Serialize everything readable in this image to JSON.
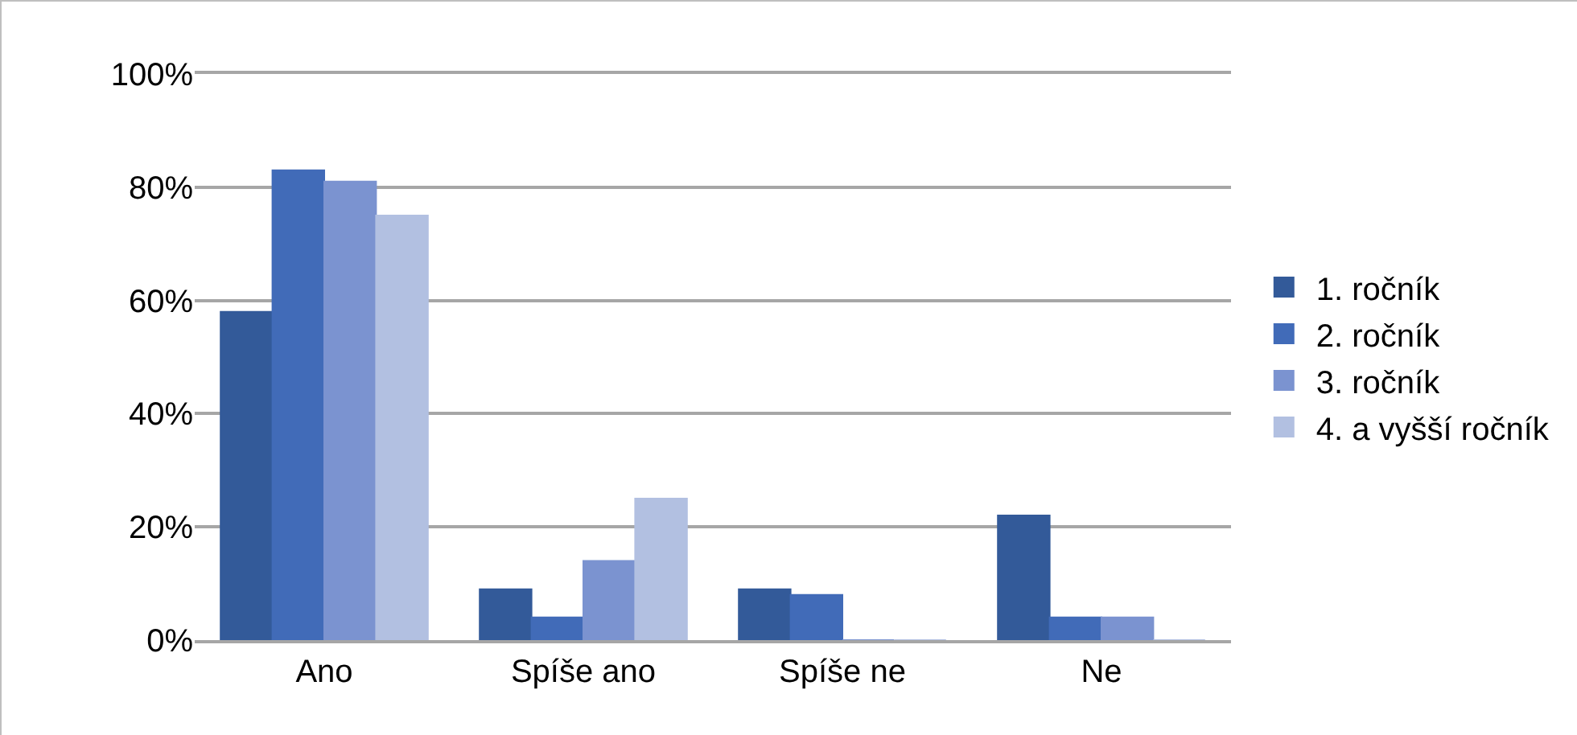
{
  "chart_data": {
    "type": "bar",
    "categories": [
      "Ano",
      "Spíše ano",
      "Spíše ne",
      "Ne"
    ],
    "series": [
      {
        "name": "1. ročník",
        "color": "#335a99",
        "values": [
          58,
          9,
          9,
          22
        ]
      },
      {
        "name": "2. ročník",
        "color": "#416bb8",
        "values": [
          83,
          4,
          8,
          4
        ]
      },
      {
        "name": "3. ročník",
        "color": "#7b93d0",
        "values": [
          81,
          14,
          0,
          4
        ]
      },
      {
        "name": "4. a vyšší ročník",
        "color": "#b2c0e1",
        "values": [
          75,
          25,
          0,
          0
        ]
      }
    ],
    "ylim": [
      0,
      100
    ],
    "yticks": [
      {
        "value": 0,
        "label": "0%"
      },
      {
        "value": 20,
        "label": "20%"
      },
      {
        "value": 40,
        "label": "40%"
      },
      {
        "value": 60,
        "label": "60%"
      },
      {
        "value": 80,
        "label": "80%"
      },
      {
        "value": 100,
        "label": "100%"
      }
    ],
    "grid": "y",
    "legend": "right"
  }
}
